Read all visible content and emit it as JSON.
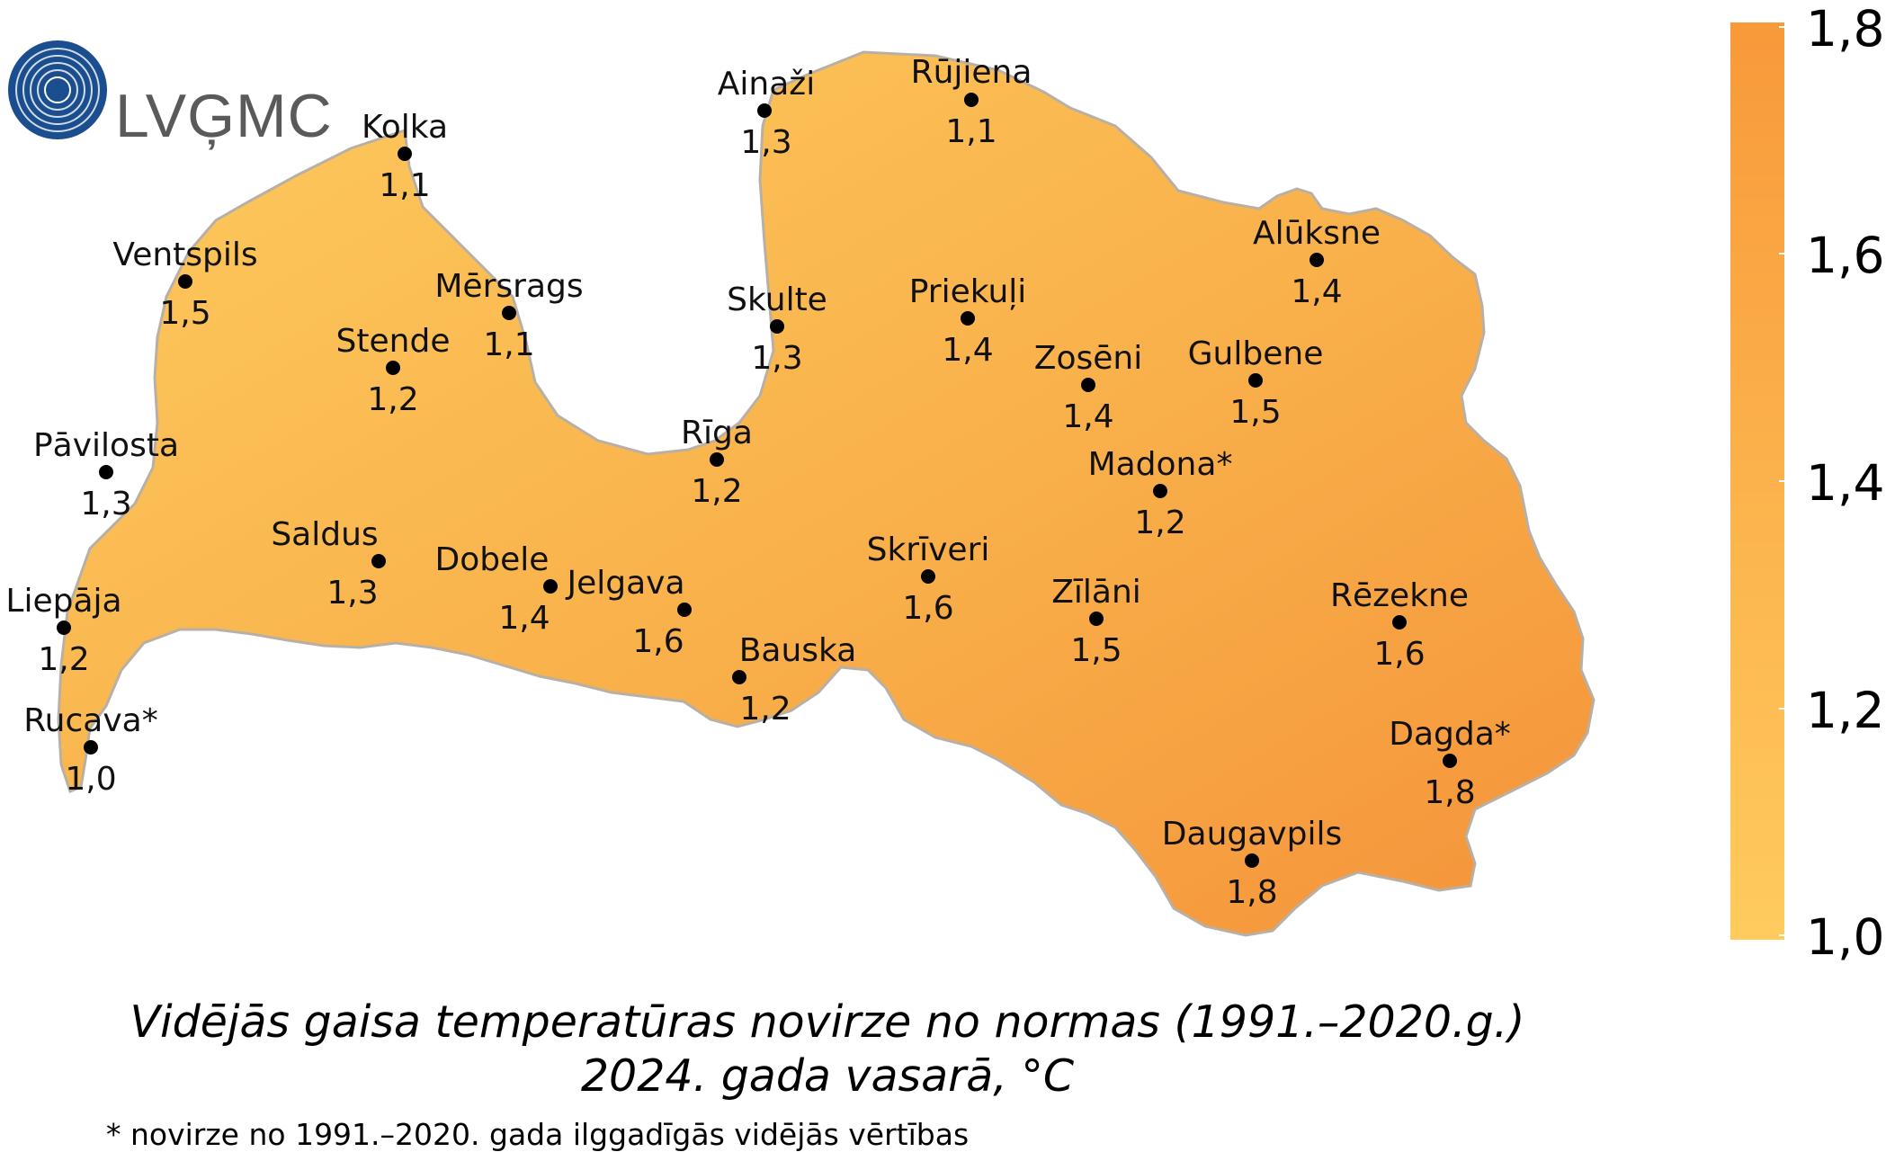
{
  "logo": {
    "text": "LVĢMC"
  },
  "title": {
    "line1": "Vidējās gaisa temperatūras novirze no normas (1991.–2020.g.)",
    "line2": "2024. gada vasarā, °C"
  },
  "footnote": "* novirze no 1991.–2020. gada ilggadīgās vidējās vērtības",
  "legend": {
    "labels": [
      "1,8",
      "1,6",
      "1,4",
      "1,2",
      "1,0"
    ],
    "color_low": "#FFC95C",
    "color_high": "#F8993A"
  },
  "colors": {
    "map_light": "#FCC257",
    "map_dark": "#F69A3C",
    "outline": "#B9B0A5",
    "dot": "#000000"
  },
  "stations": [
    {
      "name": "Ainaži",
      "value": "1,3"
    },
    {
      "name": "Rūjiena",
      "value": "1,1"
    },
    {
      "name": "Kolka",
      "value": "1,1"
    },
    {
      "name": "Ventspils",
      "value": "1,5"
    },
    {
      "name": "Mērsrags",
      "value": "1,1"
    },
    {
      "name": "Skulte",
      "value": "1,3"
    },
    {
      "name": "Priekuļi",
      "value": "1,4"
    },
    {
      "name": "Alūksne",
      "value": "1,4"
    },
    {
      "name": "Stende",
      "value": "1,2"
    },
    {
      "name": "Zosēni",
      "value": "1,4"
    },
    {
      "name": "Gulbene",
      "value": "1,5"
    },
    {
      "name": "Pāvilosta",
      "value": "1,3"
    },
    {
      "name": "Rīga",
      "value": "1,2"
    },
    {
      "name": "Madona*",
      "value": "1,2"
    },
    {
      "name": "Saldus",
      "value": "1,3"
    },
    {
      "name": "Dobele",
      "value": "1,4"
    },
    {
      "name": "Jelgava",
      "value": "1,6"
    },
    {
      "name": "Skrīveri",
      "value": "1,6"
    },
    {
      "name": "Zīlāni",
      "value": "1,5"
    },
    {
      "name": "Rēzekne",
      "value": "1,6"
    },
    {
      "name": "Liepāja",
      "value": "1,2"
    },
    {
      "name": "Bauska",
      "value": "1,2"
    },
    {
      "name": "Rucava*",
      "value": "1,0"
    },
    {
      "name": "Dagda*",
      "value": "1,8"
    },
    {
      "name": "Daugavpils",
      "value": "1,8"
    }
  ]
}
